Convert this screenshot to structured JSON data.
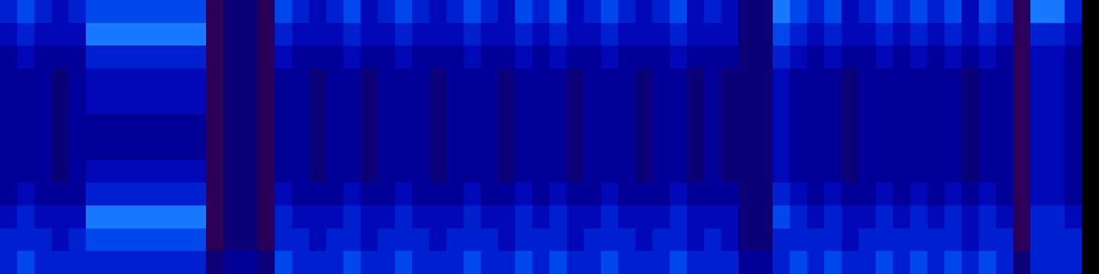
{
  "chart_data": {
    "type": "heatmap",
    "tick_labels": false,
    "zlim": [
      0,
      9
    ],
    "z": [
      [
        5,
        6,
        5,
        4,
        5,
        6,
        6,
        6,
        6,
        6,
        6,
        6,
        1,
        2,
        2,
        1,
        6,
        5,
        4,
        5,
        6,
        4,
        5,
        6,
        5,
        4,
        5,
        6,
        5,
        4,
        6,
        5,
        6,
        4,
        5,
        6,
        5,
        4,
        5,
        6,
        4,
        5,
        4,
        2,
        2,
        7,
        6,
        5,
        6,
        4,
        5,
        6,
        5,
        6,
        5,
        6,
        4,
        6,
        5,
        1,
        7,
        7,
        5,
        0
      ],
      [
        4,
        5,
        4,
        4,
        4,
        7,
        7,
        7,
        7,
        7,
        7,
        7,
        1,
        2,
        2,
        1,
        5,
        4,
        4,
        4,
        5,
        4,
        4,
        5,
        4,
        4,
        4,
        5,
        4,
        4,
        5,
        4,
        5,
        4,
        4,
        5,
        4,
        4,
        4,
        5,
        4,
        4,
        4,
        2,
        2,
        6,
        5,
        4,
        5,
        4,
        4,
        5,
        4,
        5,
        4,
        5,
        4,
        5,
        4,
        1,
        5,
        5,
        4,
        0
      ],
      [
        3,
        4,
        3,
        3,
        3,
        5,
        5,
        5,
        5,
        5,
        5,
        5,
        1,
        2,
        2,
        1,
        4,
        3,
        3,
        3,
        4,
        3,
        3,
        4,
        3,
        3,
        3,
        4,
        3,
        3,
        4,
        3,
        4,
        3,
        3,
        4,
        3,
        3,
        3,
        4,
        3,
        3,
        3,
        2,
        2,
        5,
        4,
        3,
        4,
        3,
        3,
        4,
        3,
        4,
        3,
        4,
        3,
        4,
        3,
        1,
        4,
        4,
        3,
        0
      ],
      [
        3,
        3,
        3,
        2,
        3,
        4,
        4,
        4,
        4,
        4,
        4,
        4,
        1,
        2,
        2,
        1,
        3,
        3,
        2,
        3,
        3,
        2,
        3,
        3,
        3,
        2,
        3,
        3,
        3,
        2,
        3,
        3,
        3,
        2,
        3,
        3,
        3,
        2,
        3,
        3,
        2,
        3,
        2,
        2,
        2,
        4,
        3,
        3,
        3,
        2,
        3,
        3,
        3,
        3,
        3,
        3,
        2,
        3,
        3,
        1,
        4,
        4,
        3,
        0
      ],
      [
        3,
        3,
        3,
        2,
        3,
        4,
        4,
        4,
        4,
        4,
        4,
        4,
        1,
        2,
        2,
        1,
        3,
        3,
        2,
        3,
        3,
        2,
        3,
        3,
        3,
        2,
        3,
        3,
        3,
        2,
        3,
        3,
        3,
        2,
        3,
        3,
        3,
        2,
        3,
        3,
        2,
        3,
        2,
        2,
        2,
        4,
        3,
        3,
        3,
        2,
        3,
        3,
        3,
        3,
        3,
        3,
        2,
        3,
        3,
        1,
        4,
        4,
        3,
        0
      ],
      [
        3,
        3,
        3,
        2,
        3,
        3,
        3,
        3,
        3,
        3,
        3,
        3,
        1,
        2,
        2,
        1,
        3,
        3,
        2,
        3,
        3,
        2,
        3,
        3,
        3,
        2,
        3,
        3,
        3,
        2,
        3,
        3,
        3,
        2,
        3,
        3,
        3,
        2,
        3,
        3,
        2,
        3,
        2,
        2,
        2,
        4,
        3,
        3,
        3,
        2,
        3,
        3,
        3,
        3,
        3,
        3,
        2,
        3,
        3,
        1,
        4,
        4,
        3,
        0
      ],
      [
        3,
        3,
        3,
        2,
        3,
        3,
        3,
        3,
        3,
        3,
        3,
        3,
        1,
        2,
        2,
        1,
        3,
        3,
        2,
        3,
        3,
        2,
        3,
        3,
        3,
        2,
        3,
        3,
        3,
        2,
        3,
        3,
        3,
        2,
        3,
        3,
        3,
        2,
        3,
        3,
        2,
        3,
        2,
        2,
        2,
        4,
        3,
        3,
        3,
        2,
        3,
        3,
        3,
        3,
        3,
        3,
        2,
        3,
        3,
        1,
        4,
        4,
        3,
        0
      ],
      [
        3,
        3,
        3,
        2,
        3,
        4,
        4,
        4,
        4,
        4,
        4,
        4,
        1,
        2,
        2,
        1,
        3,
        3,
        2,
        3,
        3,
        2,
        3,
        3,
        3,
        2,
        3,
        3,
        3,
        2,
        3,
        3,
        3,
        2,
        3,
        3,
        3,
        2,
        3,
        3,
        2,
        3,
        2,
        2,
        2,
        4,
        3,
        3,
        3,
        2,
        3,
        3,
        3,
        3,
        3,
        3,
        2,
        3,
        3,
        1,
        4,
        4,
        3,
        0
      ],
      [
        3,
        4,
        3,
        3,
        3,
        5,
        5,
        5,
        5,
        5,
        5,
        5,
        1,
        2,
        2,
        1,
        4,
        3,
        3,
        3,
        4,
        3,
        3,
        4,
        3,
        3,
        3,
        4,
        3,
        3,
        4,
        3,
        4,
        3,
        3,
        4,
        3,
        3,
        3,
        4,
        3,
        3,
        3,
        2,
        2,
        5,
        4,
        3,
        4,
        3,
        3,
        4,
        3,
        4,
        3,
        4,
        3,
        4,
        3,
        1,
        4,
        4,
        3,
        0
      ],
      [
        4,
        5,
        4,
        4,
        4,
        7,
        7,
        7,
        7,
        7,
        7,
        7,
        1,
        2,
        2,
        1,
        5,
        4,
        4,
        4,
        5,
        4,
        4,
        5,
        4,
        4,
        4,
        5,
        4,
        4,
        5,
        4,
        5,
        4,
        4,
        5,
        4,
        4,
        4,
        5,
        4,
        4,
        4,
        2,
        2,
        6,
        5,
        4,
        5,
        4,
        4,
        5,
        4,
        5,
        4,
        5,
        4,
        5,
        4,
        1,
        5,
        5,
        4,
        0
      ],
      [
        5,
        5,
        5,
        4,
        5,
        6,
        6,
        6,
        6,
        6,
        6,
        6,
        1,
        2,
        2,
        1,
        5,
        5,
        4,
        5,
        5,
        4,
        5,
        5,
        5,
        4,
        5,
        5,
        5,
        4,
        5,
        5,
        5,
        4,
        5,
        5,
        5,
        4,
        5,
        5,
        4,
        5,
        4,
        2,
        2,
        5,
        5,
        5,
        5,
        4,
        5,
        5,
        5,
        5,
        5,
        5,
        4,
        5,
        5,
        1,
        5,
        5,
        5,
        0
      ],
      [
        5,
        6,
        5,
        5,
        5,
        5,
        5,
        5,
        5,
        5,
        5,
        5,
        2,
        3,
        3,
        2,
        6,
        5,
        5,
        5,
        6,
        5,
        5,
        6,
        5,
        5,
        5,
        6,
        5,
        5,
        6,
        5,
        6,
        5,
        5,
        6,
        5,
        5,
        5,
        6,
        5,
        5,
        5,
        3,
        3,
        5,
        6,
        5,
        6,
        5,
        5,
        6,
        5,
        6,
        5,
        6,
        5,
        6,
        5,
        2,
        5,
        5,
        5,
        0
      ]
    ]
  }
}
